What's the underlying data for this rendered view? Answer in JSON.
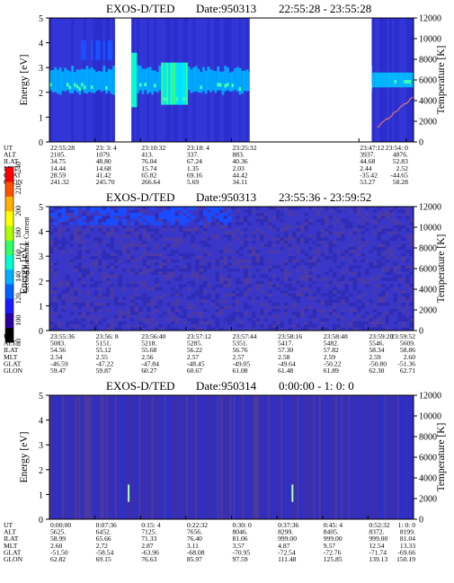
{
  "colors": {
    "bg": "#ffffff",
    "plot_bg": "#2a2fbf",
    "colorbar": [
      "#000000",
      "#2a00a0",
      "#1a1aff",
      "#0060ff",
      "#00b0ff",
      "#00ffd0",
      "#30ff60",
      "#b0ff00",
      "#ffff00",
      "#ffb000",
      "#ff5000",
      "#ff0000"
    ],
    "temperature_trace": "#ff8060"
  },
  "colorbar": {
    "label": "Second Harmonic Current",
    "ticks": [
      "80",
      "100",
      "120",
      "140",
      "160",
      "180",
      "200",
      "220",
      "240"
    ]
  },
  "chart_data": [
    {
      "type": "heatmap",
      "title": "EXOS-D/TED",
      "date_label": "Date:950313",
      "time_range": "22:55:28 - 23:55:28",
      "ylabel": "Energy [eV]",
      "ylim": [
        0,
        5
      ],
      "yticks": [
        "0",
        "1",
        "2",
        "3",
        "4",
        "5"
      ],
      "y2label": "Temperature [K]",
      "y2lim": [
        0,
        12000
      ],
      "y2ticks": [
        "0",
        "2000",
        "4000",
        "6000",
        "8000",
        "10000",
        "12000"
      ],
      "data_gaps": [
        [
          0.18,
          0.225
        ],
        [
          0.55,
          0.885
        ]
      ],
      "bright_band_energy_eV": [
        2.0,
        3.0
      ],
      "orbit": {
        "labels": [
          "UT",
          "ALT",
          "ILAT",
          "MLT",
          "GLAT",
          "GLON"
        ],
        "columns": [
          {
            "t": "22:55:28",
            "v": [
              "2105.",
              "34.75",
              "14.44",
              "28.59",
              "241.32"
            ]
          },
          {
            "t": "23: 3: 4",
            "v": [
              "1079.",
              "48.80",
              "14.68",
              "41.42",
              "245.70"
            ]
          },
          {
            "t": "23:10:32",
            "v": [
              "413.",
              "76.04",
              "15.74",
              "65.82",
              "266.64"
            ]
          },
          {
            "t": "23:18: 4",
            "v": [
              "337.",
              "67.24",
              "1.35",
              "69.16",
              "5.69"
            ]
          },
          {
            "t": "23:25:32",
            "v": [
              "883.",
              "40.36",
              "2.03",
              "44.42",
              "34.11"
            ]
          },
          {
            "t": "23:47:12",
            "v": [
              "3937.",
              "44.68",
              "2.44",
              "-35.42",
              "53.27"
            ]
          },
          {
            "t": "23:54: 0",
            "v": [
              "4876.",
              "52.83",
              "2.52",
              "-44.65",
              "58.28"
            ]
          }
        ]
      }
    },
    {
      "type": "heatmap",
      "title": "EXOS-D/TED",
      "date_label": "Date:950313",
      "time_range": "23:55:36 - 23:59:52",
      "ylabel": "Energy [eV]",
      "ylim": [
        0,
        5
      ],
      "yticks": [
        "0",
        "1",
        "2",
        "3",
        "4",
        "5"
      ],
      "y2label": "Temperature [K]",
      "y2lim": [
        0,
        12000
      ],
      "y2ticks": [
        "0",
        "2000",
        "4000",
        "6000",
        "8000",
        "10000",
        "12000"
      ],
      "orbit": {
        "labels": [
          "UT",
          "ALT",
          "ILAT",
          "MLT",
          "GLAT",
          "GLON"
        ],
        "columns": [
          {
            "t": "23:55:36",
            "v": [
              "5083.",
              "54.56",
              "2.54",
              "-46.59",
              "59.47"
            ]
          },
          {
            "t": "23:56: 8",
            "v": [
              "5151.",
              "55.12",
              "2.55",
              "-47.22",
              "59.87"
            ]
          },
          {
            "t": "23:56:40",
            "v": [
              "5218.",
              "55.68",
              "2.56",
              "-47.84",
              "60.27"
            ]
          },
          {
            "t": "23:57:12",
            "v": [
              "5285.",
              "56.22",
              "2.57",
              "-48.45",
              "60.67"
            ]
          },
          {
            "t": "23:57:44",
            "v": [
              "5351.",
              "56.76",
              "2.57",
              "-49.05",
              "61.08"
            ]
          },
          {
            "t": "23:58:16",
            "v": [
              "5417.",
              "57.30",
              "2.58",
              "-49.64",
              "61.48"
            ]
          },
          {
            "t": "23:58:48",
            "v": [
              "5482.",
              "57.82",
              "2.59",
              "-50.22",
              "61.89"
            ]
          },
          {
            "t": "23:59:20",
            "v": [
              "5546.",
              "58.34",
              "2.59",
              "-50.80",
              "62.30"
            ]
          },
          {
            "t": "23:59:52",
            "v": [
              "5609.",
              "58.86",
              "2.60",
              "-51.36",
              "62.71"
            ]
          }
        ]
      }
    },
    {
      "type": "heatmap",
      "title": "EXOS-D/TED",
      "date_label": "Date:950314",
      "time_range": "0:00:00 - 1: 0: 0",
      "ylabel": "Energy [eV]",
      "ylim": [
        0,
        5
      ],
      "yticks": [
        "0",
        "1",
        "2",
        "3",
        "4",
        "5"
      ],
      "y2label": "Temperature [K]",
      "y2lim": [
        0,
        12000
      ],
      "y2ticks": [
        "0",
        "2000",
        "4000",
        "6000",
        "8000",
        "10000",
        "12000"
      ],
      "orbit": {
        "labels": [
          "UT",
          "ALT",
          "ILAT",
          "MLT",
          "GLAT",
          "GLON"
        ],
        "columns": [
          {
            "t": "0:00:00",
            "v": [
              "5625.",
              "58.99",
              "2.60",
              "-51.50",
              "62.82"
            ]
          },
          {
            "t": "0:07:36",
            "v": [
              "6452.",
              "65.66",
              "2.72",
              "-58.54",
              "69.15"
            ]
          },
          {
            "t": "0:15: 4",
            "v": [
              "7125.",
              "71.33",
              "2.87",
              "-63.96",
              "76.63"
            ]
          },
          {
            "t": "0:22:32",
            "v": [
              "7656.",
              "76.40",
              "3.11",
              "-68.08",
              "85.97"
            ]
          },
          {
            "t": "0:30: 0",
            "v": [
              "8046.",
              "81.06",
              "3.57",
              "-70.95",
              "97.59"
            ]
          },
          {
            "t": "0:37:36",
            "v": [
              "8299.",
              "999.00",
              "4.87",
              "-72.54",
              "111.48"
            ]
          },
          {
            "t": "0:45: 4",
            "v": [
              "8405.",
              "999.00",
              "9.57",
              "-72.76",
              "125.85"
            ]
          },
          {
            "t": "0:52:32",
            "v": [
              "8372.",
              "999.00",
              "12.54",
              "-71.74",
              "139.13"
            ]
          },
          {
            "t": "1: 0: 0",
            "v": [
              "8199.",
              "81.04",
              "13.33",
              "-69.66",
              "150.19"
            ]
          }
        ]
      }
    }
  ]
}
